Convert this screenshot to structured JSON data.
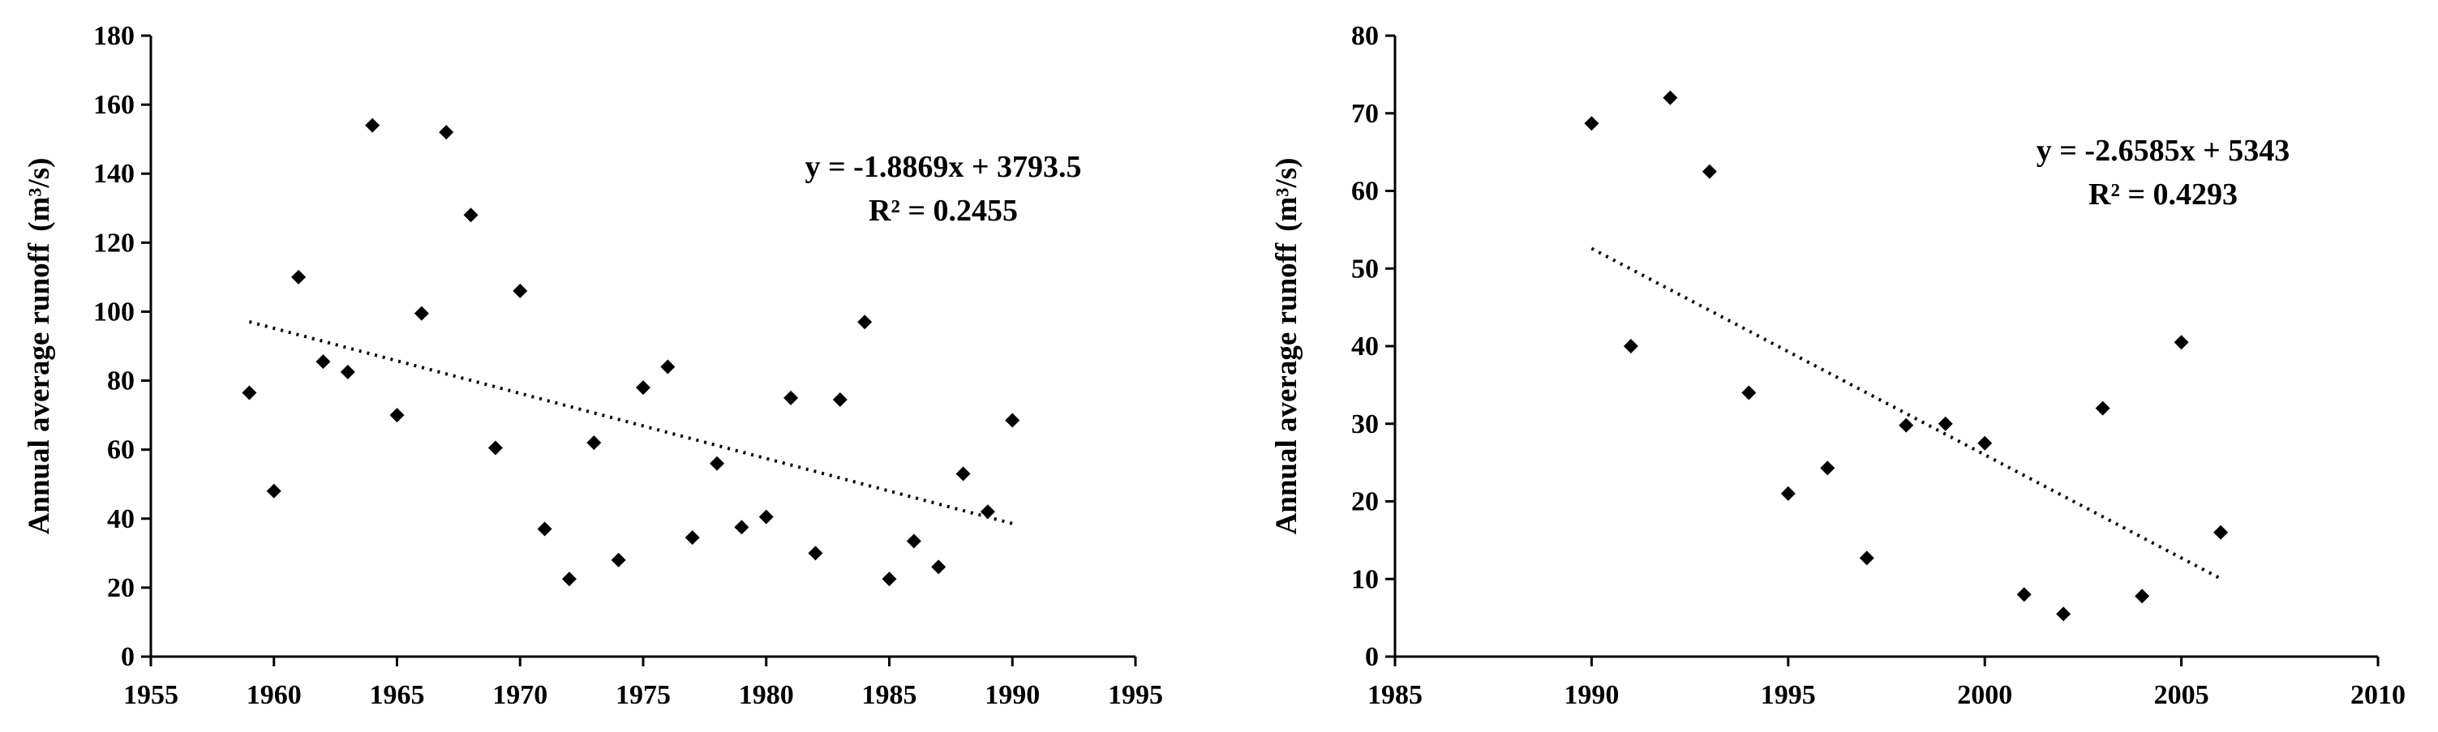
{
  "chart_data": [
    {
      "type": "scatter",
      "ylabel": "Annual average runoff",
      "ylabel_unit": "(m³/s)",
      "xlim": [
        1955,
        1995
      ],
      "ylim": [
        0,
        180
      ],
      "xticks": [
        1955,
        1960,
        1965,
        1970,
        1975,
        1980,
        1985,
        1990,
        1995
      ],
      "yticks": [
        0,
        20,
        40,
        60,
        80,
        100,
        120,
        140,
        160,
        180
      ],
      "grid": false,
      "marker": "diamond",
      "color": "#000000",
      "series": [
        {
          "x": [
            1959,
            1960,
            1961,
            1962,
            1963,
            1964,
            1965,
            1966,
            1967,
            1968,
            1969,
            1970,
            1971,
            1972,
            1973,
            1974,
            1975,
            1976,
            1977,
            1978,
            1979,
            1980,
            1981,
            1982,
            1983,
            1984,
            1985,
            1986,
            1987,
            1988,
            1989,
            1990
          ],
          "y": [
            76.5,
            48,
            110,
            85.5,
            82.5,
            154,
            70,
            99.5,
            152,
            128,
            60.5,
            106,
            37,
            22.5,
            62,
            28,
            78,
            84,
            34.5,
            56,
            37.5,
            40.5,
            75,
            30,
            74.5,
            97,
            22.5,
            33.5,
            26,
            53,
            42,
            68.5
          ]
        }
      ],
      "trendline": {
        "slope": -1.8869,
        "intercept": 3793.5,
        "x_range": [
          1959,
          1990
        ]
      },
      "equation": "y = -1.8869x + 3793.5",
      "r_squared": "R² = 0.2455"
    },
    {
      "type": "scatter",
      "ylabel": "Annual average runoff",
      "ylabel_unit": "(m³/s)",
      "xlim": [
        1985,
        2010
      ],
      "ylim": [
        0,
        80
      ],
      "xticks": [
        1985,
        1990,
        1995,
        2000,
        2005,
        2010
      ],
      "yticks": [
        0,
        10,
        20,
        30,
        40,
        50,
        60,
        70,
        80
      ],
      "grid": false,
      "marker": "diamond",
      "color": "#000000",
      "series": [
        {
          "x": [
            1990,
            1991,
            1992,
            1993,
            1994,
            1995,
            1996,
            1997,
            1998,
            1999,
            2000,
            2001,
            2002,
            2003,
            2004,
            2005,
            2006
          ],
          "y": [
            68.7,
            40,
            72,
            62.5,
            34,
            21,
            24.3,
            12.7,
            29.8,
            30,
            27.5,
            8,
            5.5,
            32,
            7.8,
            40.5,
            16
          ]
        }
      ],
      "trendline": {
        "slope": -2.6585,
        "intercept": 5343,
        "x_range": [
          1990,
          2006
        ]
      },
      "equation": "y = -2.6585x + 5343",
      "r_squared": "R² = 0.4293"
    }
  ]
}
